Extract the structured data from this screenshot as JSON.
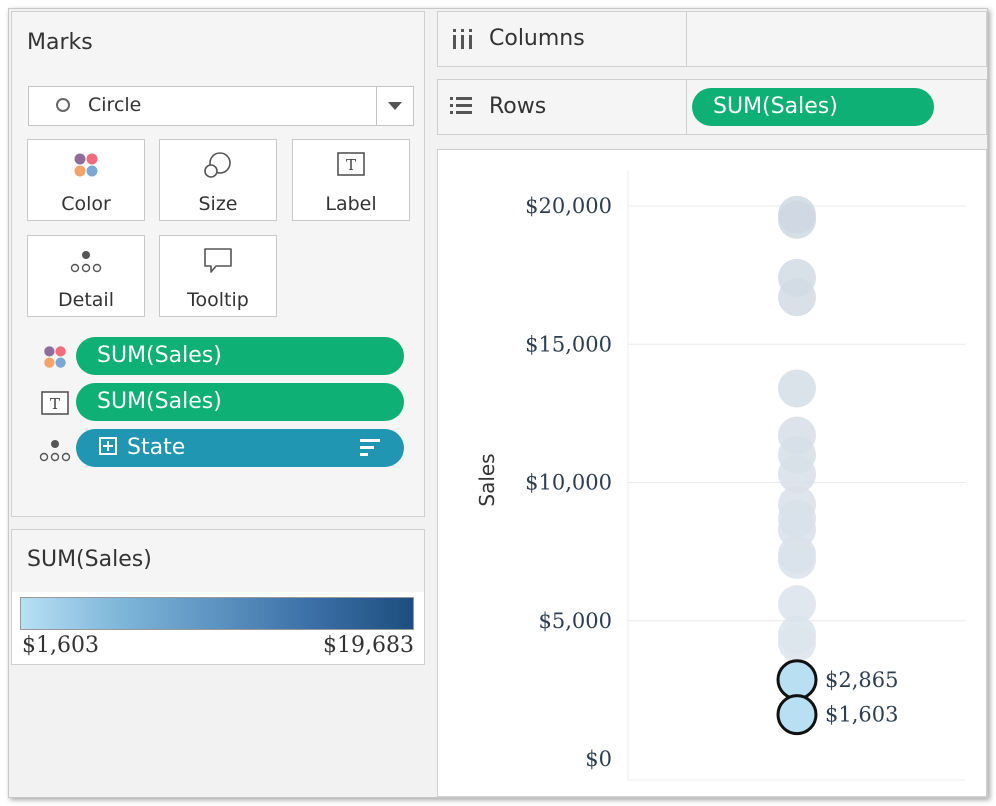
{
  "marks": {
    "title": "Marks",
    "mark_type": "Circle",
    "cards": [
      {
        "label": "Color",
        "icon": "color-icon"
      },
      {
        "label": "Size",
        "icon": "size-icon"
      },
      {
        "label": "Label",
        "icon": "label-icon"
      },
      {
        "label": "Detail",
        "icon": "detail-icon"
      },
      {
        "label": "Tooltip",
        "icon": "tooltip-icon"
      }
    ],
    "fields": [
      {
        "label": "SUM(Sales)",
        "encoding": "color-icon"
      },
      {
        "label": "SUM(Sales)",
        "encoding": "label-icon"
      },
      {
        "label": "State",
        "encoding": "detail-icon"
      }
    ]
  },
  "legend": {
    "title": "SUM(Sales)",
    "min_label": "$1,603",
    "max_label": "$19,683",
    "color_start": "#b7e0f4",
    "color_end": "#1d4e7f"
  },
  "shelves": {
    "columns_label": "Columns",
    "rows_label": "Rows",
    "rows_pill": "SUM(Sales)"
  },
  "colors": {
    "green_pill": "#0fb075",
    "blue_pill": "#2196b2"
  },
  "chart_data": {
    "type": "scatter",
    "ylabel": "Sales",
    "xlabel": "",
    "ylim": [
      0,
      20000
    ],
    "y_ticks": [
      "$0",
      "$5,000",
      "$10,000",
      "$15,000",
      "$20,000"
    ],
    "grid": true,
    "points": [
      {
        "y": 19683
      },
      {
        "y": 19500
      },
      {
        "y": 17400
      },
      {
        "y": 16700
      },
      {
        "y": 13400
      },
      {
        "y": 11700
      },
      {
        "y": 11000
      },
      {
        "y": 10300
      },
      {
        "y": 9200
      },
      {
        "y": 8700
      },
      {
        "y": 8300
      },
      {
        "y": 7400
      },
      {
        "y": 7200
      },
      {
        "y": 5600
      },
      {
        "y": 4500
      },
      {
        "y": 4200
      },
      {
        "y": 2865,
        "label": "$2,865",
        "selected": true
      },
      {
        "y": 1603,
        "label": "$1,603",
        "selected": true
      }
    ]
  }
}
